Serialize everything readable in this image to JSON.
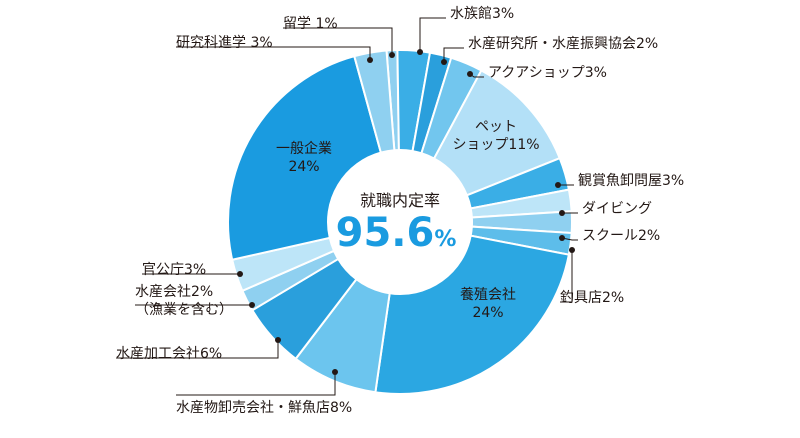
{
  "chart_data": {
    "type": "pie",
    "center_title": "就職内定率",
    "center_value": "95.6",
    "center_unit": "%",
    "slices": [
      {
        "label": "留学 1%",
        "value": 1,
        "color": "#8fd0f0"
      },
      {
        "label": "水族館3%",
        "value": 3,
        "color": "#3aaee6"
      },
      {
        "label": "水産研究所・水産振興協会2%",
        "value": 2,
        "color": "#2a9fdc"
      },
      {
        "label": "アクアショップ3%",
        "value": 3,
        "color": "#72c6ee"
      },
      {
        "label": "ペット\nショップ11%",
        "value": 11,
        "color": "#b3e0f7"
      },
      {
        "label": "観賞魚卸問屋3%",
        "value": 3,
        "color": "#3aaee6"
      },
      {
        "label": "ダイビング",
        "value": 2,
        "color": "#bde5f8"
      },
      {
        "label": "スクール2%",
        "value": 2,
        "color": "#8fd0f0"
      },
      {
        "label": "釣具店2%",
        "value": 2,
        "color": "#5dbdea"
      },
      {
        "label": "養殖会社\n24%",
        "value": 24,
        "color": "#2ba7e2"
      },
      {
        "label": "水産物卸売会社・鮮魚店8%",
        "value": 8,
        "color": "#6cc5ee"
      },
      {
        "label": "水産加工会社6%",
        "value": 6,
        "color": "#2a9fdc"
      },
      {
        "label": "水産会社2%\n（漁業を含む）",
        "value": 2,
        "color": "#8fd0f0"
      },
      {
        "label": "官公庁3%",
        "value": 3,
        "color": "#bde5f8"
      },
      {
        "label": "一般企業\n24%",
        "value": 24,
        "color": "#1a9be0"
      },
      {
        "label": "研究科進学 3%",
        "value": 3,
        "color": "#8fd0f0"
      }
    ]
  }
}
